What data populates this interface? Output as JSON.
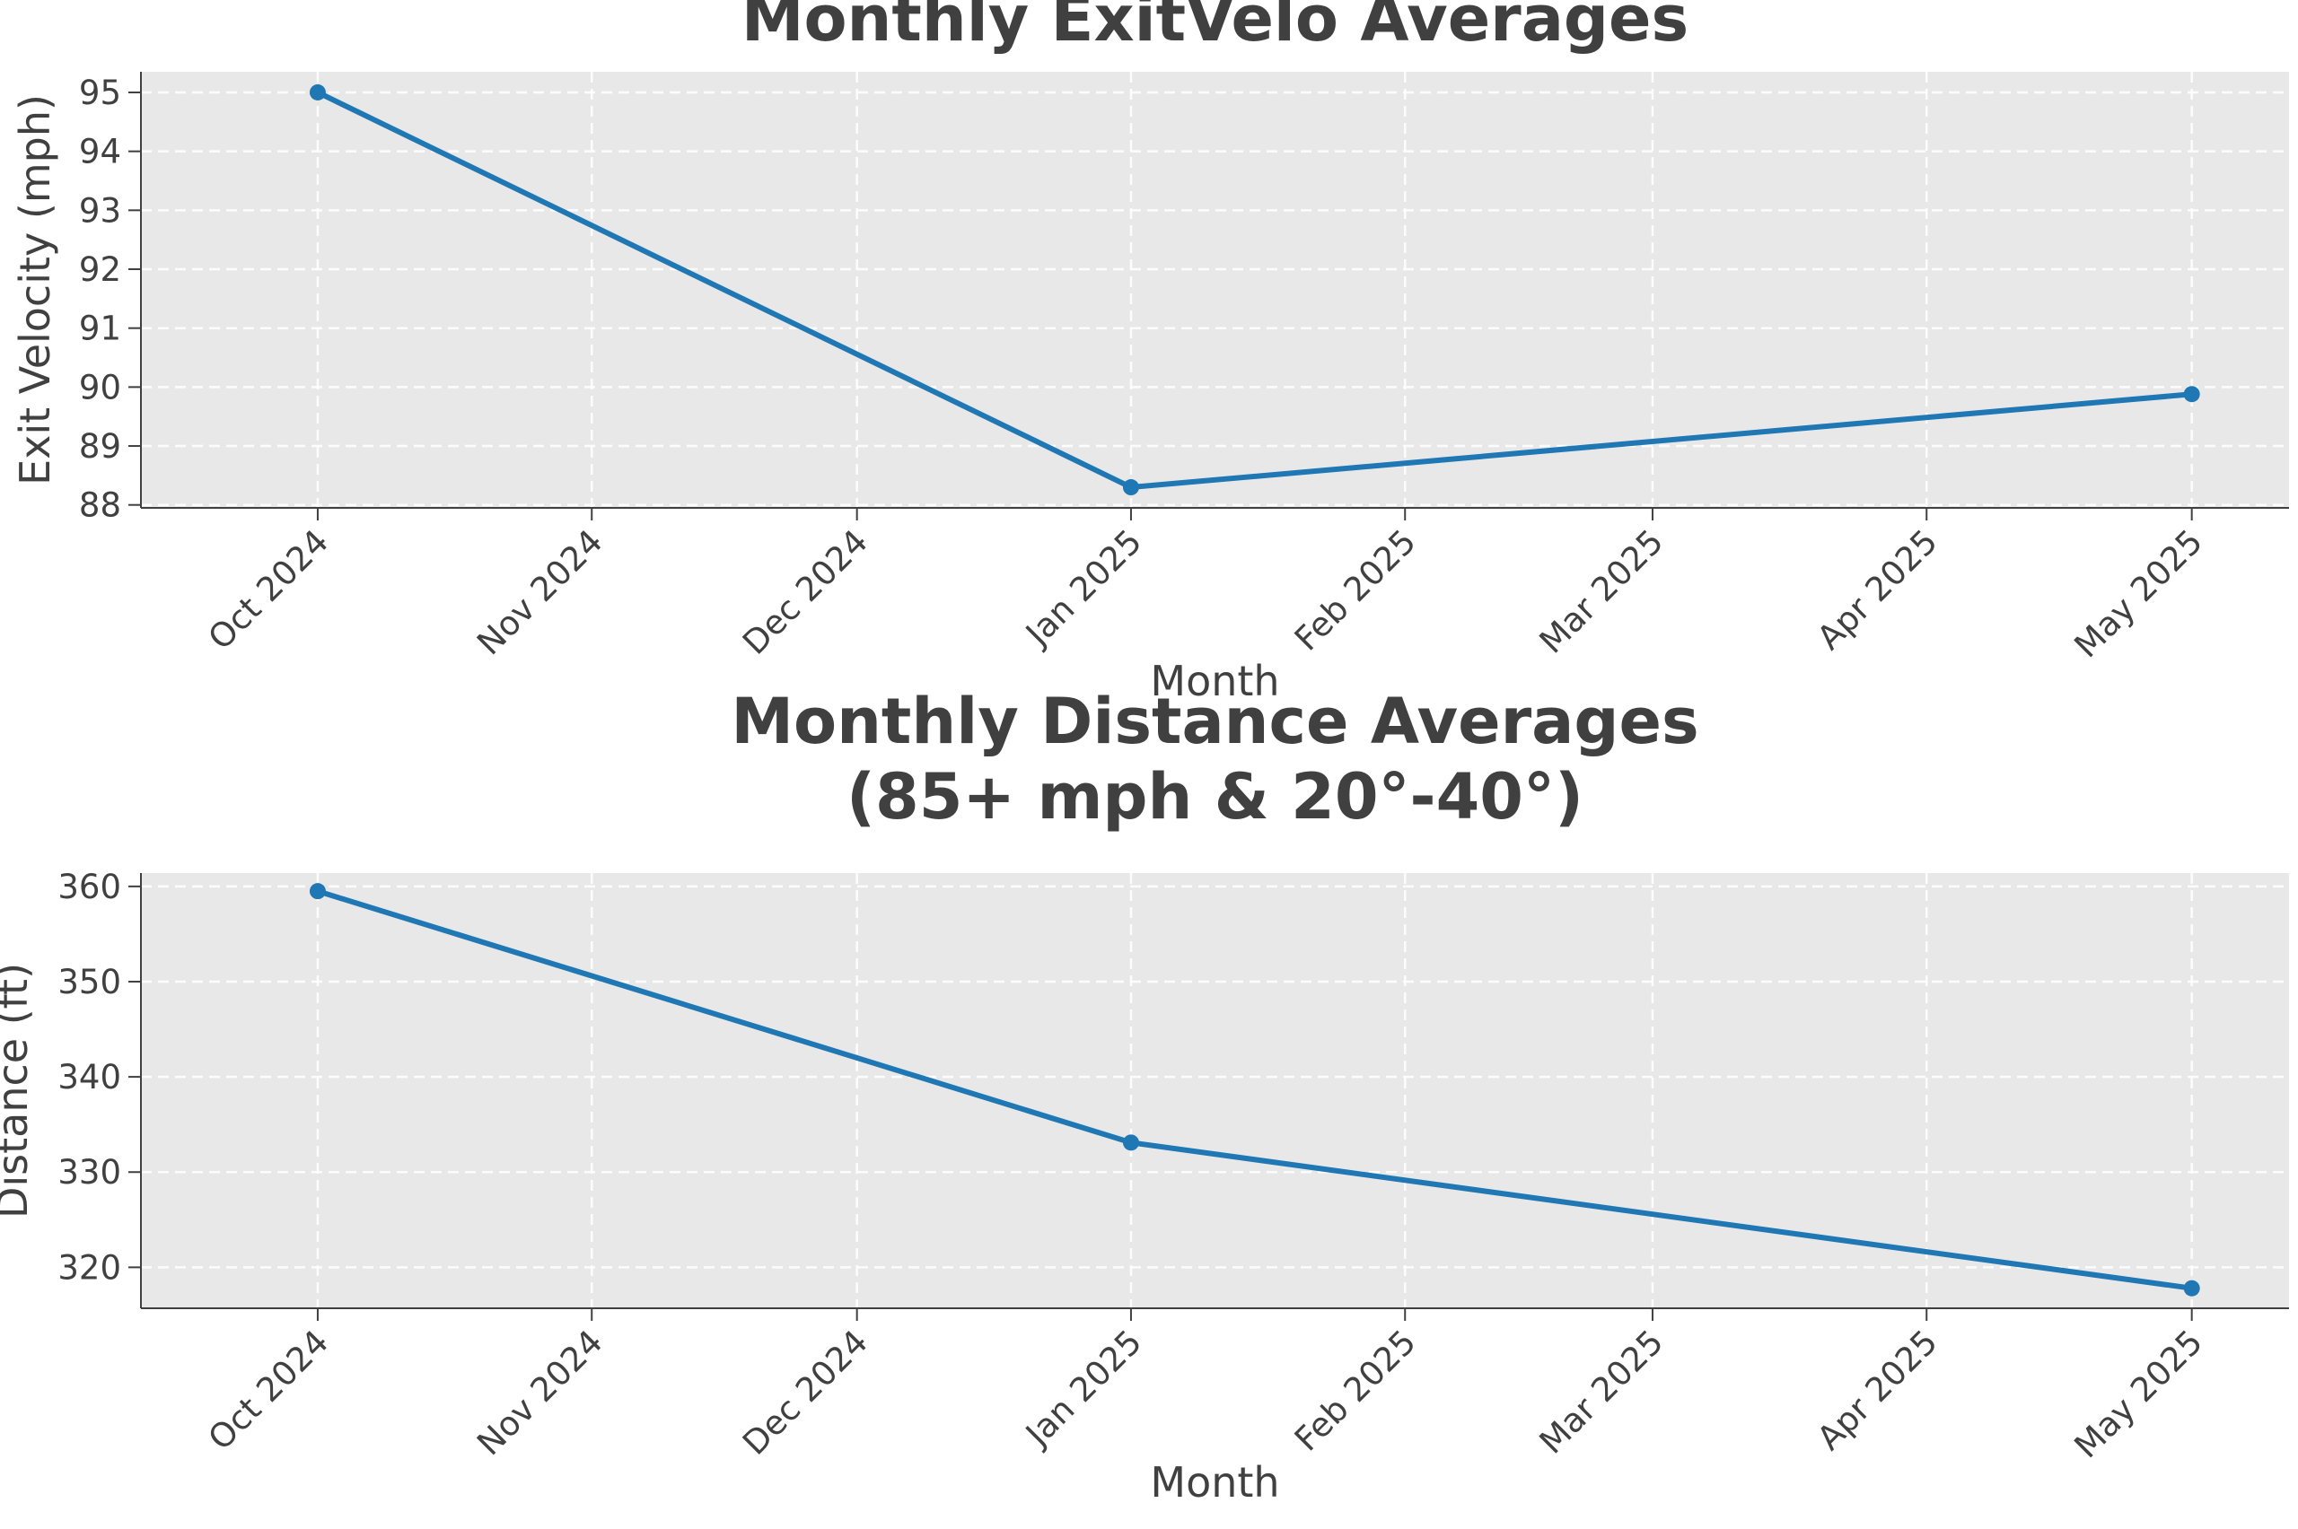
{
  "chart_data": [
    {
      "type": "line",
      "title": "Monthly ExitVelo Averages",
      "xlabel": "Month",
      "ylabel": "Exit Velocity (mph)",
      "x_ticks": [
        "Oct 2024",
        "Nov 2024",
        "Dec 2024",
        "Jan 2025",
        "Feb 2025",
        "Mar 2025",
        "Apr 2025",
        "May 2025"
      ],
      "x_tick_dates": [
        "2024-10-01",
        "2024-11-01",
        "2024-12-01",
        "2025-01-01",
        "2025-02-01",
        "2025-03-01",
        "2025-04-01",
        "2025-05-01"
      ],
      "xlim": [
        "2024-09-11",
        "2025-05-12"
      ],
      "y_ticks": [
        88,
        89,
        90,
        91,
        92,
        93,
        94,
        95
      ],
      "ylim": [
        87.95,
        95.35
      ],
      "grid": true,
      "series": [
        {
          "x": [
            "2024-10-01",
            "2025-01-01",
            "2025-05-01"
          ],
          "values": [
            95.0,
            88.3,
            89.88
          ],
          "color": "#1f77b4"
        }
      ]
    },
    {
      "type": "line",
      "title": "Monthly Distance Averages\n(85+ mph & 20°-40°)",
      "xlabel": "Month",
      "ylabel": "Distance (ft)",
      "x_ticks": [
        "Oct 2024",
        "Nov 2024",
        "Dec 2024",
        "Jan 2025",
        "Feb 2025",
        "Mar 2025",
        "Apr 2025",
        "May 2025"
      ],
      "x_tick_dates": [
        "2024-10-01",
        "2024-11-01",
        "2024-12-01",
        "2025-01-01",
        "2025-02-01",
        "2025-03-01",
        "2025-04-01",
        "2025-05-01"
      ],
      "xlim": [
        "2024-09-11",
        "2025-05-12"
      ],
      "y_ticks": [
        320,
        330,
        340,
        350,
        360
      ],
      "ylim": [
        315.7,
        361.4
      ],
      "grid": true,
      "series": [
        {
          "x": [
            "2024-10-01",
            "2025-01-01",
            "2025-05-01"
          ],
          "values": [
            359.5,
            333.1,
            317.8
          ],
          "color": "#1f77b4"
        }
      ]
    }
  ]
}
